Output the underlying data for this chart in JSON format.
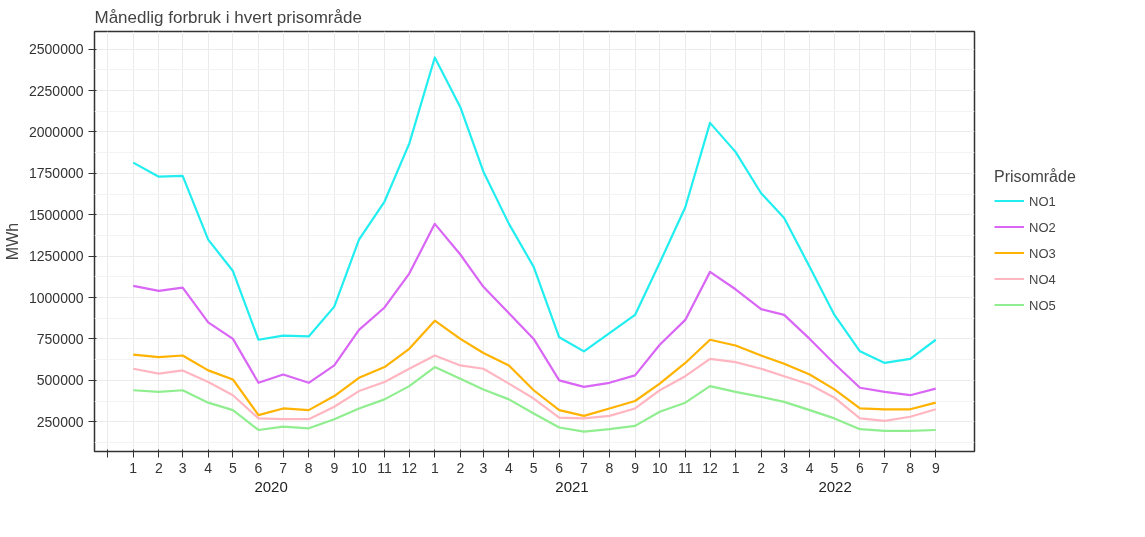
{
  "chart_data": {
    "type": "line",
    "title": "Månedlig forbruk i hvert prisområde",
    "ylabel": "MWh",
    "legend_title": "Prisområde",
    "x": [
      "2020-01",
      "2020-02",
      "2020-03",
      "2020-04",
      "2020-05",
      "2020-06",
      "2020-07",
      "2020-08",
      "2020-09",
      "2020-10",
      "2020-11",
      "2020-12",
      "2021-01",
      "2021-02",
      "2021-03",
      "2021-04",
      "2021-05",
      "2021-06",
      "2021-07",
      "2021-08",
      "2021-09",
      "2021-10",
      "2021-11",
      "2021-12",
      "2022-01",
      "2022-02",
      "2022-03",
      "2022-04",
      "2022-05",
      "2022-06",
      "2022-07",
      "2022-08",
      "2022-09"
    ],
    "series": [
      {
        "name": "NO1",
        "color": "#22eef0",
        "values": [
          1815000,
          1730000,
          1735000,
          1350000,
          1160000,
          745000,
          770000,
          765000,
          945000,
          1350000,
          1580000,
          1930000,
          2450000,
          2150000,
          1760000,
          1445000,
          1185000,
          760000,
          675000,
          785000,
          895000,
          1210000,
          1545000,
          2055000,
          1880000,
          1630000,
          1480000,
          1185000,
          895000,
          675000,
          605000,
          630000,
          745000
        ]
      },
      {
        "name": "NO2",
        "color": "#d966f5",
        "values": [
          1070000,
          1040000,
          1060000,
          850000,
          750000,
          485000,
          535000,
          485000,
          590000,
          805000,
          940000,
          1145000,
          1445000,
          1260000,
          1065000,
          905000,
          750000,
          500000,
          460000,
          485000,
          530000,
          715000,
          865000,
          1155000,
          1050000,
          930000,
          895000,
          750000,
          600000,
          455000,
          430000,
          410000,
          450000
        ]
      },
      {
        "name": "NO3",
        "color": "#ffb300",
        "values": [
          655000,
          640000,
          650000,
          560000,
          505000,
          290000,
          330000,
          320000,
          405000,
          515000,
          580000,
          690000,
          860000,
          750000,
          665000,
          590000,
          440000,
          320000,
          285000,
          330000,
          375000,
          480000,
          605000,
          745000,
          710000,
          650000,
          600000,
          535000,
          445000,
          330000,
          325000,
          325000,
          365000
        ]
      },
      {
        "name": "NO4",
        "color": "#ffb6c1",
        "values": [
          570000,
          540000,
          560000,
          490000,
          410000,
          270000,
          265000,
          265000,
          340000,
          435000,
          490000,
          570000,
          650000,
          590000,
          570000,
          480000,
          390000,
          275000,
          270000,
          285000,
          330000,
          440000,
          525000,
          630000,
          610000,
          570000,
          525000,
          475000,
          395000,
          270000,
          255000,
          280000,
          325000
        ]
      },
      {
        "name": "NO5",
        "color": "#90ee90",
        "values": [
          440000,
          430000,
          440000,
          365000,
          320000,
          200000,
          220000,
          210000,
          265000,
          330000,
          385000,
          465000,
          580000,
          510000,
          445000,
          385000,
          300000,
          215000,
          190000,
          205000,
          225000,
          310000,
          365000,
          465000,
          430000,
          400000,
          370000,
          320000,
          270000,
          205000,
          195000,
          195000,
          200000
        ]
      }
    ],
    "xlim": [
      "2019-11-15",
      "2022-10-18"
    ],
    "xticks": [
      {
        "value": "2019-12",
        "label": null
      },
      {
        "value": "2020-01",
        "label": "1"
      },
      {
        "value": "2020-02",
        "label": "2"
      },
      {
        "value": "2020-03",
        "label": "3"
      },
      {
        "value": "2020-04",
        "label": "4"
      },
      {
        "value": "2020-05",
        "label": "5"
      },
      {
        "value": "2020-06",
        "label": "6"
      },
      {
        "value": "2020-07",
        "label": "7"
      },
      {
        "value": "2020-08",
        "label": "8"
      },
      {
        "value": "2020-09",
        "label": "9"
      },
      {
        "value": "2020-10",
        "label": "10"
      },
      {
        "value": "2020-11",
        "label": "11"
      },
      {
        "value": "2020-12",
        "label": "12"
      },
      {
        "value": "2021-01",
        "label": "1"
      },
      {
        "value": "2021-02",
        "label": "2"
      },
      {
        "value": "2021-03",
        "label": "3"
      },
      {
        "value": "2021-04",
        "label": "4"
      },
      {
        "value": "2021-05",
        "label": "5"
      },
      {
        "value": "2021-06",
        "label": "6"
      },
      {
        "value": "2021-07",
        "label": "7"
      },
      {
        "value": "2021-08",
        "label": "8"
      },
      {
        "value": "2021-09",
        "label": "9"
      },
      {
        "value": "2021-10",
        "label": "10"
      },
      {
        "value": "2021-11",
        "label": "11"
      },
      {
        "value": "2021-12",
        "label": "12"
      },
      {
        "value": "2022-01",
        "label": "1"
      },
      {
        "value": "2022-02",
        "label": "2"
      },
      {
        "value": "2022-03",
        "label": "3"
      },
      {
        "value": "2022-04",
        "label": "4"
      },
      {
        "value": "2022-05",
        "label": "5"
      },
      {
        "value": "2022-06",
        "label": "6"
      },
      {
        "value": "2022-07",
        "label": "7"
      },
      {
        "value": "2022-08",
        "label": "8"
      },
      {
        "value": "2022-09",
        "label": "9"
      }
    ],
    "ylim": [
      70000,
      2607000
    ],
    "yticks": [
      250000,
      500000,
      750000,
      1000000,
      1250000,
      1500000,
      1750000,
      2000000,
      2250000,
      2500000
    ],
    "annotations": [
      "2020",
      "2021",
      "2022"
    ],
    "grid": true,
    "legend": "right",
    "marker": "none",
    "line_style": "solid"
  }
}
